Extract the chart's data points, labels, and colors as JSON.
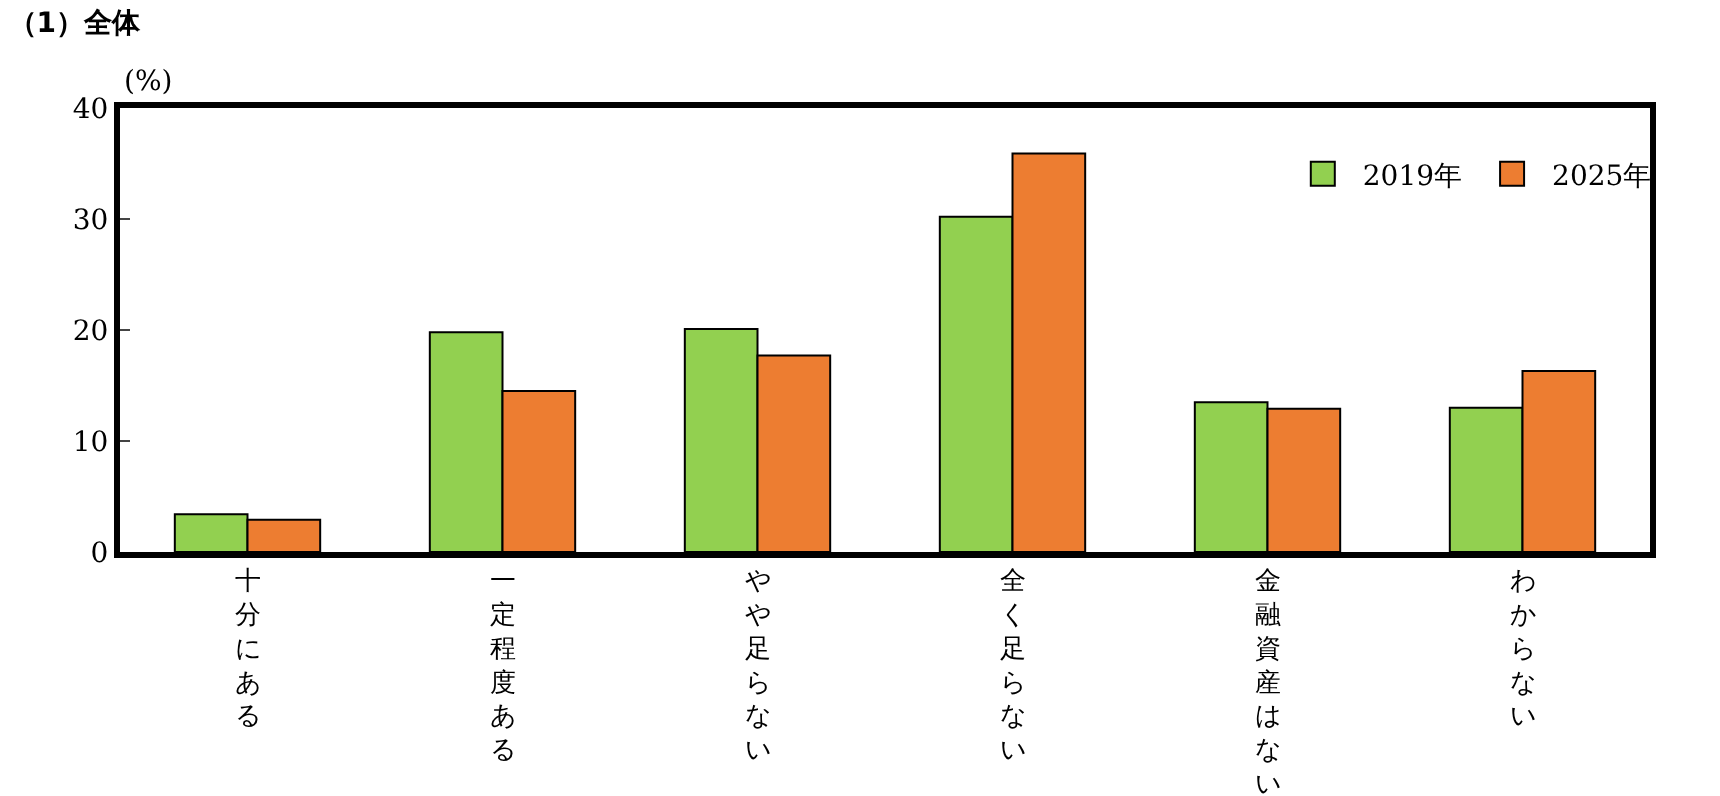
{
  "chart_data": {
    "type": "bar",
    "title": "（1）全体",
    "ylabel": "(%)",
    "categories": [
      "十分にある",
      "一定程度ある",
      "やや足らない",
      "全く足らない",
      "金融資産はない",
      "わからない"
    ],
    "series": [
      {
        "name": "2019年",
        "color": "#92d050",
        "values": [
          3.4,
          19.8,
          20.1,
          30.2,
          13.5,
          13.0
        ]
      },
      {
        "name": "2025年",
        "color": "#ed7d31",
        "values": [
          2.9,
          14.5,
          17.7,
          35.9,
          12.9,
          16.3
        ]
      }
    ],
    "ylim": [
      0,
      40
    ],
    "yticks": [
      0,
      10,
      20,
      30,
      40
    ],
    "grid": false,
    "legend": "top right"
  }
}
